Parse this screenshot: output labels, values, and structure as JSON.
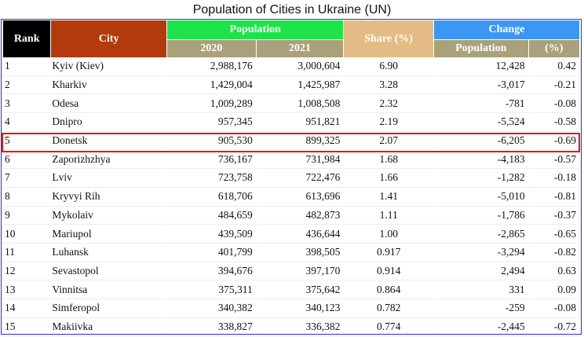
{
  "title": "Population of Cities in Ukraine (UN)",
  "headers": {
    "rank": "Rank",
    "city": "City",
    "population": "Population",
    "y2020": "2020",
    "y2021": "2021",
    "share": "Share (%)",
    "change": "Change",
    "change_population": "Population",
    "change_percent": "(%)"
  },
  "colors": {
    "rank_header": "#000000",
    "city_header": "#b23a0c",
    "population_header": "#1ee24a",
    "share_header": "#e5bc86",
    "change_header": "#3c97f2",
    "subheader": "#a8a17a",
    "highlight_border": "#e01818"
  },
  "rows": [
    {
      "rank": "1",
      "city": "Kyiv (Kiev)",
      "p2020": "2,988,176",
      "p2021": "3,000,604",
      "share": "6.90",
      "change": "12,428",
      "pct": "0.42"
    },
    {
      "rank": "2",
      "city": "Kharkiv",
      "p2020": "1,429,004",
      "p2021": "1,425,987",
      "share": "3.28",
      "change": "-3,017",
      "pct": "-0.21"
    },
    {
      "rank": "3",
      "city": "Odesa",
      "p2020": "1,009,289",
      "p2021": "1,008,508",
      "share": "2.32",
      "change": "-781",
      "pct": "-0.08"
    },
    {
      "rank": "4",
      "city": "Dnipro",
      "p2020": "957,345",
      "p2021": "951,821",
      "share": "2.19",
      "change": "-5,524",
      "pct": "-0.58"
    },
    {
      "rank": "5",
      "city": "Donetsk",
      "p2020": "905,530",
      "p2021": "899,325",
      "share": "2.07",
      "change": "-6,205",
      "pct": "-0.69"
    },
    {
      "rank": "6",
      "city": "Zaporizhzhya",
      "p2020": "736,167",
      "p2021": "731,984",
      "share": "1.68",
      "change": "-4,183",
      "pct": "-0.57"
    },
    {
      "rank": "7",
      "city": "Lviv",
      "p2020": "723,758",
      "p2021": "722,476",
      "share": "1.66",
      "change": "-1,282",
      "pct": "-0.18"
    },
    {
      "rank": "8",
      "city": "Kryvyi Rih",
      "p2020": "618,706",
      "p2021": "613,696",
      "share": "1.41",
      "change": "-5,010",
      "pct": "-0.81"
    },
    {
      "rank": "9",
      "city": "Mykolaiv",
      "p2020": "484,659",
      "p2021": "482,873",
      "share": "1.11",
      "change": "-1,786",
      "pct": "-0.37"
    },
    {
      "rank": "10",
      "city": "Mariupol",
      "p2020": "439,509",
      "p2021": "436,644",
      "share": "1.00",
      "change": "-2,865",
      "pct": "-0.65"
    },
    {
      "rank": "11",
      "city": "Luhansk",
      "p2020": "401,799",
      "p2021": "398,505",
      "share": "0.917",
      "change": "-3,294",
      "pct": "-0.82"
    },
    {
      "rank": "12",
      "city": "Sevastopol",
      "p2020": "394,676",
      "p2021": "397,170",
      "share": "0.914",
      "change": "2,494",
      "pct": "0.63"
    },
    {
      "rank": "13",
      "city": "Vinnitsa",
      "p2020": "375,311",
      "p2021": "375,642",
      "share": "0.864",
      "change": "331",
      "pct": "0.09"
    },
    {
      "rank": "14",
      "city": "Simferopol",
      "p2020": "340,382",
      "p2021": "340,123",
      "share": "0.782",
      "change": "-259",
      "pct": "-0.08"
    },
    {
      "rank": "15",
      "city": "Makiivka",
      "p2020": "338,827",
      "p2021": "336,382",
      "share": "0.774",
      "change": "-2,445",
      "pct": "-0.72"
    }
  ]
}
